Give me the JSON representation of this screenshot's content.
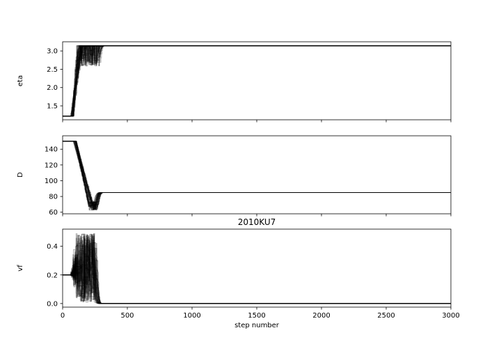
{
  "figure": {
    "title": "2010KU7",
    "xlabel": "step number"
  },
  "chart_data": [
    {
      "type": "line",
      "ylabel": "eta",
      "xlim": [
        0,
        3000
      ],
      "ylim": [
        1.12,
        3.25
      ],
      "xticks": [
        0,
        500,
        1000,
        1500,
        2000,
        2500,
        3000
      ],
      "yticks": [
        1.5,
        2.0,
        2.5,
        3.0
      ],
      "ytick_labels": [
        "1.5",
        "2.0",
        "2.5",
        "3.0"
      ],
      "show_xtick_labels": false,
      "line_color": "#000000",
      "series_count": 32,
      "series_profile": {
        "start": 1.22,
        "burn_start": 60,
        "burn_end": 110,
        "plateau": 3.14,
        "oscillation_amp": 0.55,
        "oscillation_end": 260,
        "converge_end": 320,
        "final": 3.14,
        "min": 1.22,
        "max": 3.14
      }
    },
    {
      "type": "line",
      "ylabel": "D",
      "xlim": [
        0,
        3000
      ],
      "ylim": [
        58,
        157
      ],
      "xticks": [
        0,
        500,
        1000,
        1500,
        2000,
        2500,
        3000
      ],
      "yticks": [
        60,
        80,
        100,
        120,
        140
      ],
      "ytick_labels": [
        "60",
        "80",
        "100",
        "120",
        "140"
      ],
      "show_xtick_labels": false,
      "line_color": "#000000",
      "series_count": 32,
      "series_profile": {
        "start": 150,
        "burn_start": 80,
        "burn_end": 200,
        "plateau": 68,
        "oscillation_amp": 6,
        "oscillation_end": 240,
        "converge_end": 320,
        "final": 85,
        "min": 63,
        "max": 152
      }
    },
    {
      "type": "line",
      "title": "2010KU7",
      "ylabel": "vf",
      "xlabel": "step number",
      "xlim": [
        0,
        3000
      ],
      "ylim": [
        -0.025,
        0.52
      ],
      "xticks": [
        0,
        500,
        1000,
        1500,
        2000,
        2500,
        3000
      ],
      "xtick_labels": [
        "0",
        "500",
        "1000",
        "1500",
        "2000",
        "2500",
        "3000"
      ],
      "yticks": [
        0.0,
        0.2,
        0.4
      ],
      "ytick_labels": [
        "0.0",
        "0.2",
        "0.4"
      ],
      "show_xtick_labels": true,
      "line_color": "#000000",
      "series_count": 32,
      "series_profile": {
        "start": 0.2,
        "burn_start": 55,
        "burn_end": 80,
        "plateau": 0.25,
        "oscillation_amp": 0.24,
        "oscillation_end": 230,
        "converge_end": 300,
        "final": 0.0,
        "min": 0.0,
        "max": 0.49
      }
    }
  ]
}
